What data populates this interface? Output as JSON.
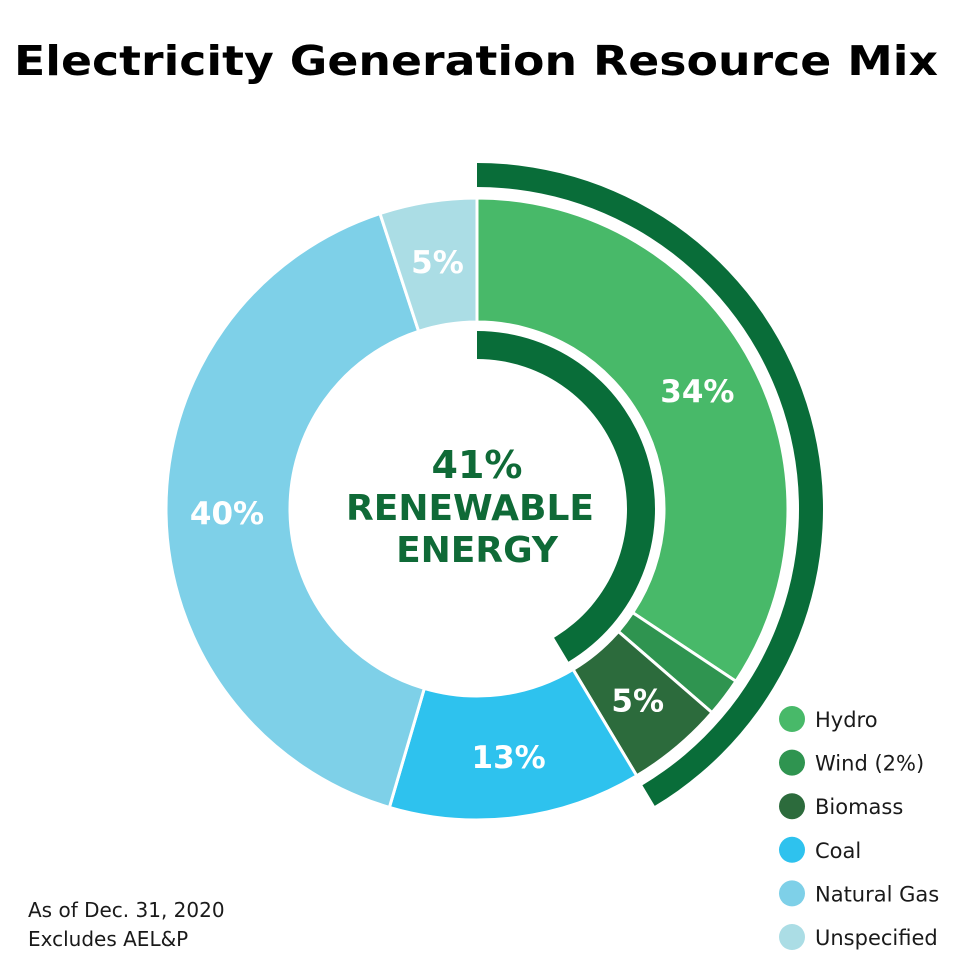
{
  "chart_data": {
    "type": "pie",
    "title": "Electricity Generation Resource Mix",
    "slices": [
      {
        "name": "Hydro",
        "value": 34,
        "label": "34%",
        "color": "#48b969"
      },
      {
        "name": "Wind (2%)",
        "value": 2,
        "label": "",
        "color": "#2f9450"
      },
      {
        "name": "Biomass",
        "value": 5,
        "label": "5%",
        "color": "#2c6b3c"
      },
      {
        "name": "Coal",
        "value": 13,
        "label": "13%",
        "color": "#2ec2ee"
      },
      {
        "name": "Natural Gas",
        "value": 40,
        "label": "40%",
        "color": "#7ed0e8"
      },
      {
        "name": "Unspecified",
        "value": 5,
        "label": "5%",
        "color": "#abdde5"
      }
    ],
    "renewable_share": 41,
    "center_text": [
      "41%",
      "RENEWABLE",
      "ENERGY"
    ],
    "accent_color": "#096d39",
    "legend_position": "bottom-right",
    "notes": [
      "As of Dec. 31, 2020",
      "Excludes AEL&P"
    ]
  }
}
